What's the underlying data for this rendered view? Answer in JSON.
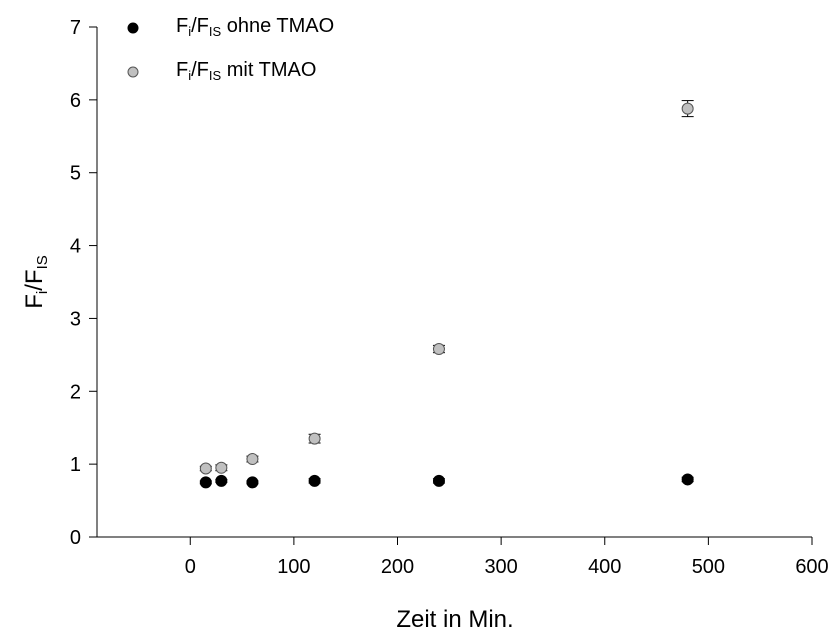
{
  "chart_data": {
    "type": "scatter",
    "xlabel": "Zeit in Min.",
    "ylabel": {
      "base": "F",
      "sub1": "i",
      "mid": "/F",
      "sub2": "IS"
    },
    "xlim": [
      -90,
      600
    ],
    "ylim": [
      0,
      7
    ],
    "xticks": [
      0,
      100,
      200,
      300,
      400,
      500,
      600
    ],
    "yticks": [
      0,
      1,
      2,
      3,
      4,
      5,
      6,
      7
    ],
    "grid": false,
    "legend_position": "top-left",
    "series": [
      {
        "name": {
          "base": "F",
          "sub1": "i",
          "mid": "/F",
          "sub2": "IS",
          "rest": " ohne TMAO"
        },
        "color": "#000000",
        "x": [
          15,
          30,
          60,
          120,
          240,
          480
        ],
        "y": [
          0.75,
          0.77,
          0.75,
          0.77,
          0.77,
          0.79
        ],
        "err": [
          0.02,
          0.02,
          0.02,
          0.03,
          0.03,
          0.03
        ]
      },
      {
        "name": {
          "base": "F",
          "sub1": "i",
          "mid": "/F",
          "sub2": "IS",
          "rest": " mit TMAO"
        },
        "color": "#c0c0c0",
        "x": [
          15,
          30,
          60,
          120,
          240,
          480
        ],
        "y": [
          0.94,
          0.95,
          1.07,
          1.35,
          2.58,
          5.88
        ],
        "err": [
          0.03,
          0.04,
          0.04,
          0.06,
          0.05,
          0.11
        ]
      }
    ]
  }
}
